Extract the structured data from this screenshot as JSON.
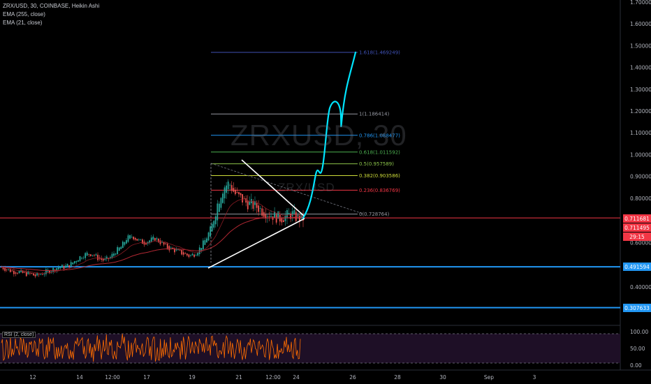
{
  "symbol_line": "ZRX/USD, 30, COINBASE, Heikin Ashi",
  "indicators": [
    "EMA (255, close)",
    "EMA (21, close)"
  ],
  "rsi_label": "RSI (2, close)",
  "watermark_symbol": "ZRXUSD, 30",
  "watermark_name": "ZRX/USD",
  "colors": {
    "background": "#000000",
    "fib_1618": "#3f51b5",
    "fib_1": "#9598a1",
    "fib_0786": "#2196f3",
    "fib_0618": "#4caf50",
    "fib_05": "#8bc34a",
    "fib_0382": "#cddc39",
    "fib_0236": "#f23645",
    "fib_0": "#9598a1",
    "projection": "#00e5ff",
    "support_line": "#2196f3",
    "current_price_line": "#f23645",
    "rsi_line": "#ff6d00",
    "rsi_band": "#3c1c4a",
    "ema255": "#b22833",
    "triangle": "#ffffff"
  },
  "chart_data": {
    "type": "candlestick",
    "title": "ZRX/USD, 30, COINBASE, Heikin Ashi",
    "y_axis_ticks": [
      "1.700000",
      "1.600000",
      "1.500000",
      "1.400000",
      "1.300000",
      "1.200000",
      "1.100000",
      "1.000000",
      "0.900000",
      "0.800000",
      "0.600000",
      "0.400000"
    ],
    "x_axis_ticks": [
      "12",
      "14",
      "12:00",
      "17",
      "19",
      "21",
      "12:00",
      "24",
      "26",
      "28",
      "30",
      "Sep",
      "3"
    ],
    "price_tags": [
      {
        "label": "0.711681",
        "color": "#f23645",
        "price": 0.711681
      },
      {
        "label": "0.711495",
        "color": "#f23645",
        "price": 0.711495
      },
      {
        "label": "29:15",
        "color": "#f23645"
      },
      {
        "label": "0.491594",
        "color": "#2196f3",
        "price": 0.491594
      },
      {
        "label": "0.307633",
        "color": "#2196f3",
        "price": 0.307633
      }
    ],
    "fibonacci": [
      {
        "label": "1.618(1.469249)",
        "level": 1.618,
        "price": 1.469249,
        "color": "#3f51b5"
      },
      {
        "label": "1(1.186414)",
        "level": 1,
        "price": 1.186414,
        "color": "#9598a1"
      },
      {
        "label": "0.786(1.088477)",
        "level": 0.786,
        "price": 1.088477,
        "color": "#2196f3"
      },
      {
        "label": "0.618(1.011592)",
        "level": 0.618,
        "price": 1.011592,
        "color": "#4caf50"
      },
      {
        "label": "0.5(0.957589)",
        "level": 0.5,
        "price": 0.957589,
        "color": "#8bc34a"
      },
      {
        "label": "0.382(0.903586)",
        "level": 0.382,
        "price": 0.903586,
        "color": "#cddc39"
      },
      {
        "label": "0.236(0.836769)",
        "level": 0.236,
        "price": 0.836769,
        "color": "#f23645"
      },
      {
        "label": "0(0.728764)",
        "level": 0,
        "price": 0.728764,
        "color": "#9598a1"
      }
    ],
    "horizontal_lines": [
      {
        "price": 0.491594,
        "color": "#2196f3"
      },
      {
        "price": 0.307633,
        "color": "#2196f3"
      },
      {
        "price": 0.711681,
        "color": "#f23645"
      }
    ],
    "candles_approx_close": [
      0.49,
      0.48,
      0.47,
      0.47,
      0.46,
      0.46,
      0.45,
      0.46,
      0.47,
      0.48,
      0.49,
      0.49,
      0.5,
      0.52,
      0.54,
      0.55,
      0.55,
      0.53,
      0.52,
      0.53,
      0.56,
      0.58,
      0.62,
      0.63,
      0.61,
      0.6,
      0.61,
      0.62,
      0.6,
      0.58,
      0.57,
      0.56,
      0.55,
      0.54,
      0.55,
      0.58,
      0.62,
      0.68,
      0.78,
      0.85,
      0.87,
      0.82,
      0.8,
      0.78,
      0.77,
      0.76,
      0.74,
      0.73,
      0.72,
      0.71,
      0.72,
      0.73,
      0.71,
      0.71
    ],
    "rsi_axis": [
      "100.00",
      "50.00",
      "0.00"
    ],
    "rsi_bands": [
      80,
      20
    ],
    "series": [
      {
        "name": "EMA (255, close)"
      },
      {
        "name": "EMA (21, close)"
      }
    ]
  }
}
